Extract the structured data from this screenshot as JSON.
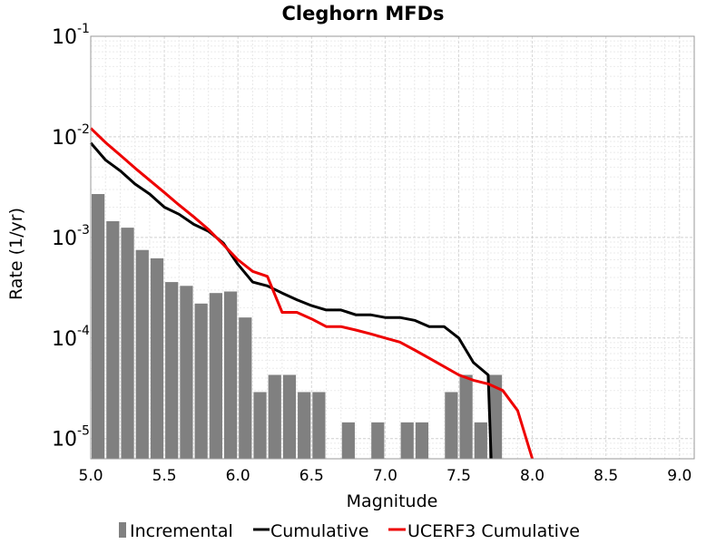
{
  "chart_data": {
    "type": "bar",
    "title": "Cleghorn MFDs",
    "xlabel": "Magnitude",
    "ylabel": "Rate (1/yr)",
    "x_scale": "linear",
    "y_scale": "log",
    "xlim": [
      5.0,
      9.1
    ],
    "ylim": [
      6.3e-06,
      0.1
    ],
    "grid": true,
    "legend_position": "bottom",
    "x_ticks": [
      "5.0",
      "5.5",
      "6.0",
      "6.5",
      "7.0",
      "7.5",
      "8.0",
      "8.5",
      "9.0"
    ],
    "y_ticks": [
      {
        "base": "10",
        "exp": "-1"
      },
      {
        "base": "10",
        "exp": "-2"
      },
      {
        "base": "10",
        "exp": "-3"
      },
      {
        "base": "10",
        "exp": "-4"
      },
      {
        "base": "10",
        "exp": "-5"
      }
    ],
    "series": [
      {
        "name": "Incremental",
        "kind": "bar",
        "color": "#808080",
        "bin_width": 0.1,
        "x": [
          5.05,
          5.15,
          5.25,
          5.35,
          5.45,
          5.55,
          5.65,
          5.75,
          5.85,
          5.95,
          6.05,
          6.15,
          6.25,
          6.35,
          6.45,
          6.55,
          6.75,
          6.95,
          7.15,
          7.25,
          7.45,
          7.55,
          7.65,
          7.75
        ],
        "y": [
          0.0027,
          0.00145,
          0.00125,
          0.00075,
          0.00062,
          0.00036,
          0.00033,
          0.00022,
          0.00028,
          0.00029,
          0.00016,
          2.9e-05,
          4.3e-05,
          4.3e-05,
          2.9e-05,
          2.9e-05,
          1.45e-05,
          1.45e-05,
          1.45e-05,
          1.45e-05,
          2.9e-05,
          4.3e-05,
          1.45e-05,
          4.3e-05
        ]
      },
      {
        "name": "Cumulative",
        "kind": "line",
        "color": "#000000",
        "x": [
          5.0,
          5.1,
          5.2,
          5.3,
          5.4,
          5.5,
          5.6,
          5.7,
          5.8,
          5.9,
          6.0,
          6.1,
          6.2,
          6.3,
          6.4,
          6.5,
          6.6,
          6.7,
          6.8,
          6.9,
          7.0,
          7.1,
          7.2,
          7.3,
          7.4,
          7.5,
          7.6,
          7.7,
          7.72
        ],
        "y": [
          0.0087,
          0.0059,
          0.0046,
          0.0034,
          0.0027,
          0.002,
          0.0017,
          0.00135,
          0.00115,
          0.00088,
          0.00054,
          0.00036,
          0.00033,
          0.00028,
          0.00024,
          0.00021,
          0.00019,
          0.00019,
          0.00017,
          0.00017,
          0.00016,
          0.00016,
          0.00015,
          0.00013,
          0.00013,
          0.0001,
          5.7e-05,
          4.3e-05,
          6.3e-06
        ]
      },
      {
        "name": "UCERF3 Cumulative",
        "kind": "line",
        "color": "#ee0000",
        "x": [
          5.0,
          5.1,
          5.2,
          5.3,
          5.4,
          5.5,
          5.6,
          5.7,
          5.8,
          5.9,
          6.0,
          6.1,
          6.2,
          6.3,
          6.4,
          6.5,
          6.6,
          6.7,
          6.8,
          6.9,
          7.0,
          7.1,
          7.2,
          7.3,
          7.4,
          7.5,
          7.6,
          7.7,
          7.8,
          7.9,
          8.0
        ],
        "y": [
          0.0122,
          0.0088,
          0.0066,
          0.0049,
          0.0037,
          0.0028,
          0.0021,
          0.0016,
          0.0012,
          0.00085,
          0.0006,
          0.00046,
          0.00041,
          0.00018,
          0.00018,
          0.000155,
          0.00013,
          0.00013,
          0.00012,
          0.00011,
          0.0001,
          9.1e-05,
          7.6e-05,
          6.3e-05,
          5.2e-05,
          4.3e-05,
          3.8e-05,
          3.5e-05,
          3e-05,
          1.9e-05,
          6.3e-06
        ]
      }
    ]
  }
}
